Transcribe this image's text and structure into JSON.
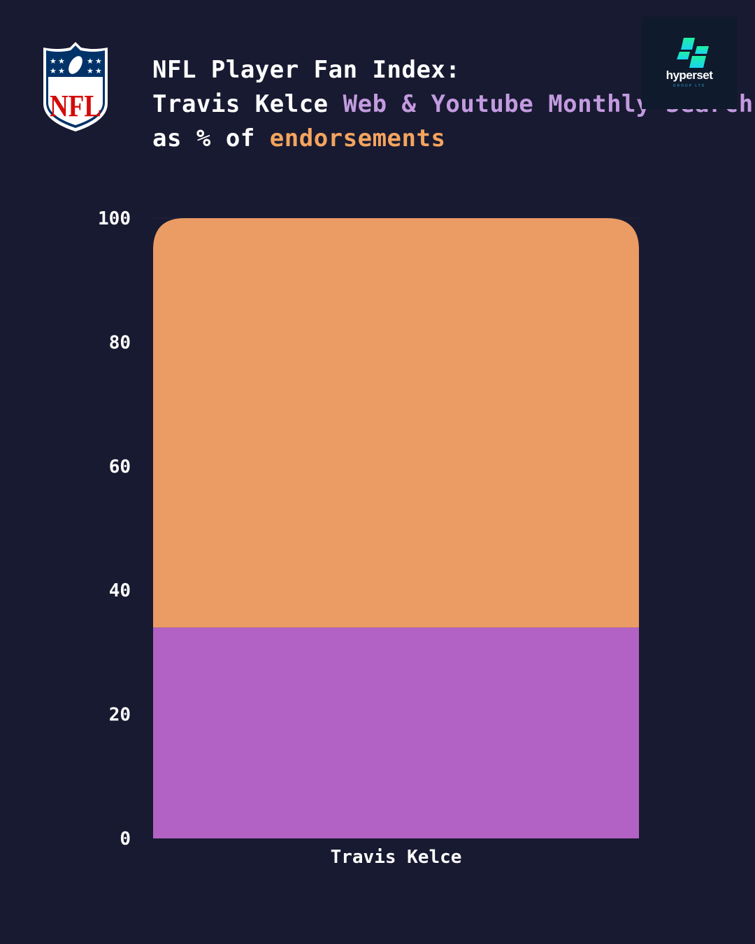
{
  "header": {
    "title_line1": "NFL Player Fan Index:",
    "title_player": "Travis Kelce",
    "title_metric": "Web & Youtube Monthly Search",
    "title_mid": "as % of",
    "title_endorse": "endorsements"
  },
  "logos": {
    "league": "NFL",
    "brand_name": "hyperset",
    "brand_sub": "GROUP LTD"
  },
  "chart_data": {
    "type": "bar",
    "stacked": true,
    "categories": [
      "Travis Kelce"
    ],
    "series": [
      {
        "values": [
          34
        ],
        "color": "#b262c4"
      },
      {
        "values": [
          66
        ],
        "color": "#eb9b64"
      }
    ],
    "ylim": [
      0,
      100
    ],
    "yticks": [
      0,
      20,
      40,
      60,
      80,
      100
    ],
    "grid": false,
    "xlabel": "",
    "ylabel": ""
  }
}
